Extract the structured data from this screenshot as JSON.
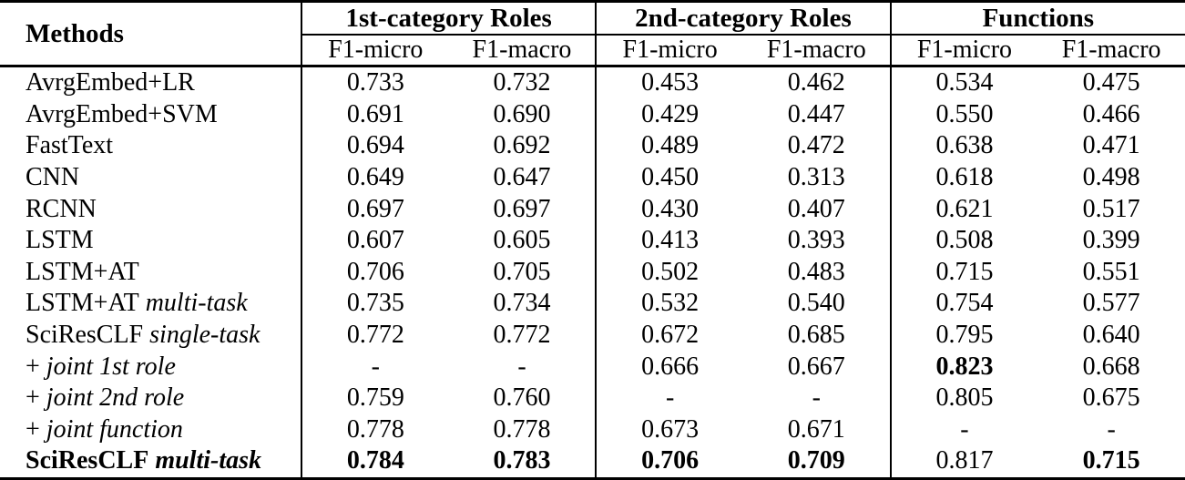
{
  "table": {
    "header": {
      "methods_label": "Methods",
      "groups": [
        {
          "label": "1st-category Roles",
          "sub": [
            "F1-micro",
            "F1-macro"
          ]
        },
        {
          "label": "2nd-category Roles",
          "sub": [
            "F1-micro",
            "F1-macro"
          ]
        },
        {
          "label": "Functions",
          "sub": [
            "F1-micro",
            "F1-macro"
          ]
        }
      ]
    },
    "rows": [
      {
        "method": {
          "plain": "AvrgEmbed+LR",
          "italic": ""
        },
        "method_bold": false,
        "values": [
          "0.733",
          "0.732",
          "0.453",
          "0.462",
          "0.534",
          "0.475"
        ],
        "bold": [
          false,
          false,
          false,
          false,
          false,
          false
        ]
      },
      {
        "method": {
          "plain": "AvrgEmbed+SVM",
          "italic": ""
        },
        "method_bold": false,
        "values": [
          "0.691",
          "0.690",
          "0.429",
          "0.447",
          "0.550",
          "0.466"
        ],
        "bold": [
          false,
          false,
          false,
          false,
          false,
          false
        ]
      },
      {
        "method": {
          "plain": "FastText",
          "italic": ""
        },
        "method_bold": false,
        "values": [
          "0.694",
          "0.692",
          "0.489",
          "0.472",
          "0.638",
          "0.471"
        ],
        "bold": [
          false,
          false,
          false,
          false,
          false,
          false
        ]
      },
      {
        "method": {
          "plain": "CNN",
          "italic": ""
        },
        "method_bold": false,
        "values": [
          "0.649",
          "0.647",
          "0.450",
          "0.313",
          "0.618",
          "0.498"
        ],
        "bold": [
          false,
          false,
          false,
          false,
          false,
          false
        ]
      },
      {
        "method": {
          "plain": "RCNN",
          "italic": ""
        },
        "method_bold": false,
        "values": [
          "0.697",
          "0.697",
          "0.430",
          "0.407",
          "0.621",
          "0.517"
        ],
        "bold": [
          false,
          false,
          false,
          false,
          false,
          false
        ]
      },
      {
        "method": {
          "plain": "LSTM",
          "italic": ""
        },
        "method_bold": false,
        "values": [
          "0.607",
          "0.605",
          "0.413",
          "0.393",
          "0.508",
          "0.399"
        ],
        "bold": [
          false,
          false,
          false,
          false,
          false,
          false
        ]
      },
      {
        "method": {
          "plain": "LSTM+AT",
          "italic": ""
        },
        "method_bold": false,
        "values": [
          "0.706",
          "0.705",
          "0.502",
          "0.483",
          "0.715",
          "0.551"
        ],
        "bold": [
          false,
          false,
          false,
          false,
          false,
          false
        ]
      },
      {
        "method": {
          "plain": "LSTM+AT",
          "italic": "multi-task"
        },
        "method_bold": false,
        "values": [
          "0.735",
          "0.734",
          "0.532",
          "0.540",
          "0.754",
          "0.577"
        ],
        "bold": [
          false,
          false,
          false,
          false,
          false,
          false
        ]
      },
      {
        "method": {
          "plain": "SciResCLF",
          "italic": "single-task"
        },
        "method_bold": false,
        "values": [
          "0.772",
          "0.772",
          "0.672",
          "0.685",
          "0.795",
          "0.640"
        ],
        "bold": [
          false,
          false,
          false,
          false,
          false,
          false
        ]
      },
      {
        "method": {
          "plain": "+",
          "italic": "joint 1st role"
        },
        "method_bold": false,
        "values": [
          "-",
          "-",
          "0.666",
          "0.667",
          "0.823",
          "0.668"
        ],
        "bold": [
          false,
          false,
          false,
          false,
          true,
          false
        ]
      },
      {
        "method": {
          "plain": "+",
          "italic": "joint 2nd role"
        },
        "method_bold": false,
        "values": [
          "0.759",
          "0.760",
          "-",
          "-",
          "0.805",
          "0.675"
        ],
        "bold": [
          false,
          false,
          false,
          false,
          false,
          false
        ]
      },
      {
        "method": {
          "plain": "+",
          "italic": "joint function"
        },
        "method_bold": false,
        "values": [
          "0.778",
          "0.778",
          "0.673",
          "0.671",
          "-",
          "-"
        ],
        "bold": [
          false,
          false,
          false,
          false,
          false,
          false
        ]
      },
      {
        "method": {
          "plain": "SciResCLF",
          "italic": "multi-task"
        },
        "method_bold": true,
        "values": [
          "0.784",
          "0.783",
          "0.706",
          "0.709",
          "0.817",
          "0.715"
        ],
        "bold": [
          true,
          true,
          true,
          true,
          false,
          true
        ]
      }
    ]
  },
  "colors": {
    "text": "#000000",
    "border": "#000000",
    "background": "#ffffff"
  }
}
